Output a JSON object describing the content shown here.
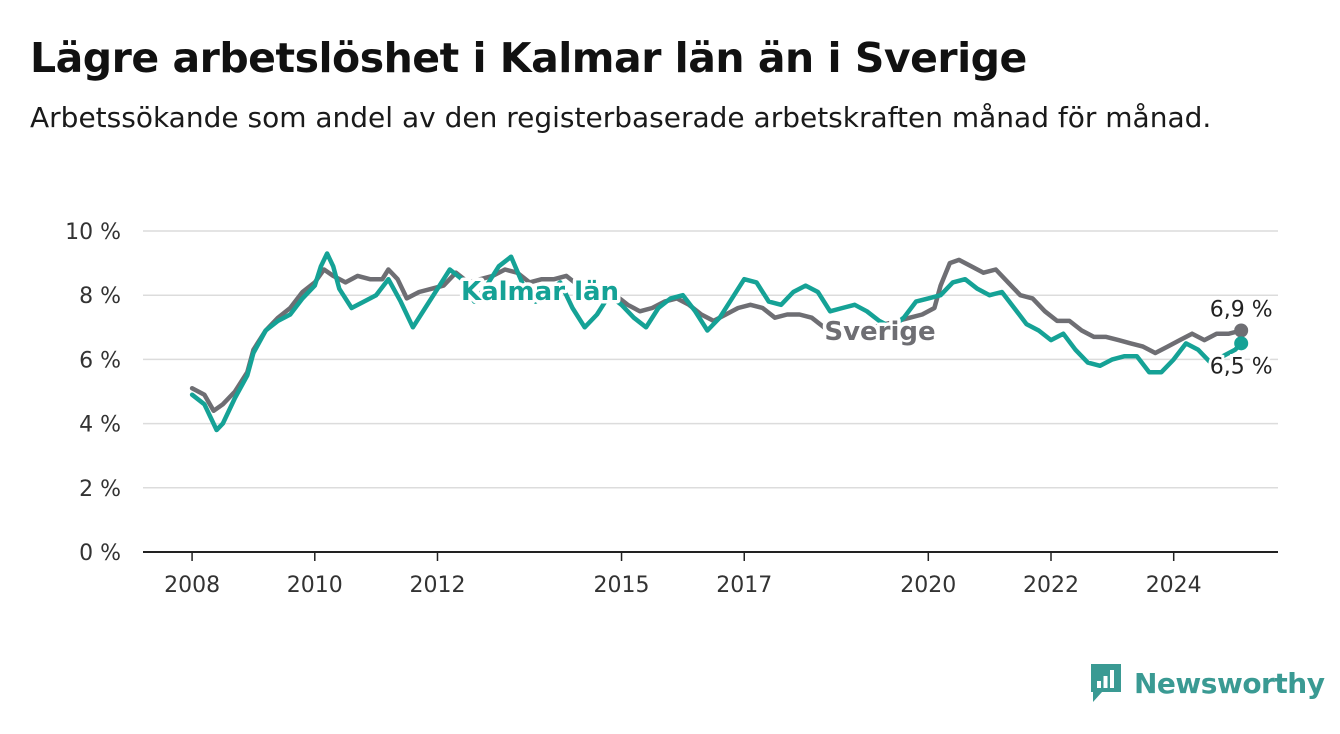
{
  "title": "Lägre arbetslöshet i Kalmar län än i Sverige",
  "subtitle": "Arbetssökande som andel av den registerbaserade arbetskraften månad för månad.",
  "brand": {
    "name": "Newsworthy",
    "icon": "bar-chart-logo-icon",
    "color": "#3a9a93"
  },
  "chart_data": {
    "type": "line",
    "y_ticks": [
      "0 %",
      "2 %",
      "4 %",
      "6 %",
      "8 %",
      "10 %"
    ],
    "ylim": [
      0,
      10
    ],
    "x_ticks": [
      {
        "label": "2008",
        "x": 2008.0
      },
      {
        "label": "2010",
        "x": 2010.0
      },
      {
        "label": "2012",
        "x": 2012.0
      },
      {
        "label": "2015",
        "x": 2015.0
      },
      {
        "label": "2017",
        "x": 2017.0
      },
      {
        "label": "2020",
        "x": 2020.0
      },
      {
        "label": "2022",
        "x": 2022.0
      },
      {
        "label": "2024",
        "x": 2024.0
      }
    ],
    "xlim": [
      2007.2,
      2025.7
    ],
    "grid": true,
    "series": [
      {
        "name": "Sverige",
        "color": "#6e6e73",
        "end_label": "6,9 %",
        "points": [
          [
            2008.0,
            5.1
          ],
          [
            2008.2,
            4.9
          ],
          [
            2008.35,
            4.4
          ],
          [
            2008.5,
            4.6
          ],
          [
            2008.7,
            5.0
          ],
          [
            2008.9,
            5.6
          ],
          [
            2009.0,
            6.3
          ],
          [
            2009.2,
            6.9
          ],
          [
            2009.4,
            7.3
          ],
          [
            2009.6,
            7.6
          ],
          [
            2009.8,
            8.1
          ],
          [
            2010.0,
            8.4
          ],
          [
            2010.15,
            8.8
          ],
          [
            2010.3,
            8.6
          ],
          [
            2010.5,
            8.4
          ],
          [
            2010.7,
            8.6
          ],
          [
            2010.9,
            8.5
          ],
          [
            2011.1,
            8.5
          ],
          [
            2011.2,
            8.8
          ],
          [
            2011.35,
            8.5
          ],
          [
            2011.5,
            7.9
          ],
          [
            2011.7,
            8.1
          ],
          [
            2011.9,
            8.2
          ],
          [
            2012.1,
            8.3
          ],
          [
            2012.3,
            8.7
          ],
          [
            2012.5,
            8.4
          ],
          [
            2012.7,
            8.5
          ],
          [
            2012.9,
            8.6
          ],
          [
            2013.1,
            8.8
          ],
          [
            2013.3,
            8.7
          ],
          [
            2013.5,
            8.4
          ],
          [
            2013.7,
            8.5
          ],
          [
            2013.9,
            8.5
          ],
          [
            2014.1,
            8.6
          ],
          [
            2014.3,
            8.3
          ],
          [
            2014.5,
            8.2
          ],
          [
            2014.7,
            8.1
          ],
          [
            2014.9,
            8.0
          ],
          [
            2015.1,
            7.7
          ],
          [
            2015.3,
            7.5
          ],
          [
            2015.5,
            7.6
          ],
          [
            2015.7,
            7.8
          ],
          [
            2015.9,
            7.9
          ],
          [
            2016.1,
            7.7
          ],
          [
            2016.3,
            7.4
          ],
          [
            2016.5,
            7.2
          ],
          [
            2016.7,
            7.4
          ],
          [
            2016.9,
            7.6
          ],
          [
            2017.1,
            7.7
          ],
          [
            2017.3,
            7.6
          ],
          [
            2017.5,
            7.3
          ],
          [
            2017.7,
            7.4
          ],
          [
            2017.9,
            7.4
          ],
          [
            2018.1,
            7.3
          ],
          [
            2018.3,
            7.0
          ],
          [
            2018.5,
            6.9
          ],
          [
            2018.7,
            6.9
          ],
          [
            2018.9,
            7.0
          ],
          [
            2019.1,
            7.0
          ],
          [
            2019.3,
            7.1
          ],
          [
            2019.5,
            7.2
          ],
          [
            2019.7,
            7.3
          ],
          [
            2019.9,
            7.4
          ],
          [
            2020.1,
            7.6
          ],
          [
            2020.2,
            8.3
          ],
          [
            2020.35,
            9.0
          ],
          [
            2020.5,
            9.1
          ],
          [
            2020.7,
            8.9
          ],
          [
            2020.9,
            8.7
          ],
          [
            2021.1,
            8.8
          ],
          [
            2021.3,
            8.4
          ],
          [
            2021.5,
            8.0
          ],
          [
            2021.7,
            7.9
          ],
          [
            2021.9,
            7.5
          ],
          [
            2022.1,
            7.2
          ],
          [
            2022.3,
            7.2
          ],
          [
            2022.5,
            6.9
          ],
          [
            2022.7,
            6.7
          ],
          [
            2022.9,
            6.7
          ],
          [
            2023.1,
            6.6
          ],
          [
            2023.3,
            6.5
          ],
          [
            2023.5,
            6.4
          ],
          [
            2023.7,
            6.2
          ],
          [
            2023.9,
            6.4
          ],
          [
            2024.1,
            6.6
          ],
          [
            2024.3,
            6.8
          ],
          [
            2024.5,
            6.6
          ],
          [
            2024.7,
            6.8
          ],
          [
            2024.9,
            6.8
          ],
          [
            2025.1,
            6.9
          ]
        ]
      },
      {
        "name": "Kalmar län",
        "color": "#15a296",
        "end_label": "6,5 %",
        "points": [
          [
            2008.0,
            4.9
          ],
          [
            2008.2,
            4.6
          ],
          [
            2008.4,
            3.8
          ],
          [
            2008.5,
            4.0
          ],
          [
            2008.7,
            4.8
          ],
          [
            2008.9,
            5.5
          ],
          [
            2009.0,
            6.2
          ],
          [
            2009.2,
            6.9
          ],
          [
            2009.4,
            7.2
          ],
          [
            2009.6,
            7.4
          ],
          [
            2009.8,
            7.9
          ],
          [
            2010.0,
            8.3
          ],
          [
            2010.1,
            8.9
          ],
          [
            2010.2,
            9.3
          ],
          [
            2010.3,
            8.9
          ],
          [
            2010.4,
            8.2
          ],
          [
            2010.6,
            7.6
          ],
          [
            2010.8,
            7.8
          ],
          [
            2011.0,
            8.0
          ],
          [
            2011.2,
            8.5
          ],
          [
            2011.4,
            7.8
          ],
          [
            2011.6,
            7.0
          ],
          [
            2011.8,
            7.6
          ],
          [
            2012.0,
            8.2
          ],
          [
            2012.2,
            8.8
          ],
          [
            2012.4,
            8.5
          ],
          [
            2012.6,
            7.8
          ],
          [
            2012.8,
            8.3
          ],
          [
            2013.0,
            8.9
          ],
          [
            2013.2,
            9.2
          ],
          [
            2013.4,
            8.3
          ],
          [
            2013.6,
            7.8
          ],
          [
            2013.8,
            8.1
          ],
          [
            2014.0,
            8.4
          ],
          [
            2014.2,
            7.6
          ],
          [
            2014.4,
            7.0
          ],
          [
            2014.6,
            7.4
          ],
          [
            2014.8,
            8.0
          ],
          [
            2015.0,
            7.7
          ],
          [
            2015.2,
            7.3
          ],
          [
            2015.4,
            7.0
          ],
          [
            2015.6,
            7.6
          ],
          [
            2015.8,
            7.9
          ],
          [
            2016.0,
            8.0
          ],
          [
            2016.2,
            7.5
          ],
          [
            2016.4,
            6.9
          ],
          [
            2016.6,
            7.3
          ],
          [
            2016.8,
            7.9
          ],
          [
            2017.0,
            8.5
          ],
          [
            2017.2,
            8.4
          ],
          [
            2017.4,
            7.8
          ],
          [
            2017.6,
            7.7
          ],
          [
            2017.8,
            8.1
          ],
          [
            2018.0,
            8.3
          ],
          [
            2018.2,
            8.1
          ],
          [
            2018.4,
            7.5
          ],
          [
            2018.6,
            7.6
          ],
          [
            2018.8,
            7.7
          ],
          [
            2019.0,
            7.5
          ],
          [
            2019.2,
            7.2
          ],
          [
            2019.4,
            7.0
          ],
          [
            2019.6,
            7.3
          ],
          [
            2019.8,
            7.8
          ],
          [
            2020.0,
            7.9
          ],
          [
            2020.2,
            8.0
          ],
          [
            2020.4,
            8.4
          ],
          [
            2020.6,
            8.5
          ],
          [
            2020.8,
            8.2
          ],
          [
            2021.0,
            8.0
          ],
          [
            2021.2,
            8.1
          ],
          [
            2021.4,
            7.6
          ],
          [
            2021.6,
            7.1
          ],
          [
            2021.8,
            6.9
          ],
          [
            2022.0,
            6.6
          ],
          [
            2022.2,
            6.8
          ],
          [
            2022.4,
            6.3
          ],
          [
            2022.6,
            5.9
          ],
          [
            2022.8,
            5.8
          ],
          [
            2023.0,
            6.0
          ],
          [
            2023.2,
            6.1
          ],
          [
            2023.4,
            6.1
          ],
          [
            2023.6,
            5.6
          ],
          [
            2023.8,
            5.6
          ],
          [
            2024.0,
            6.0
          ],
          [
            2024.2,
            6.5
          ],
          [
            2024.4,
            6.3
          ],
          [
            2024.6,
            5.9
          ],
          [
            2024.8,
            6.1
          ],
          [
            2025.0,
            6.3
          ],
          [
            2025.1,
            6.5
          ]
        ]
      }
    ]
  }
}
